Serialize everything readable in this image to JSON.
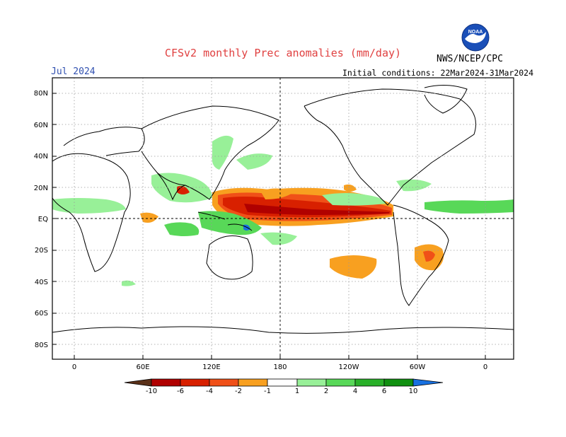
{
  "header": {
    "title": "CFSv2 monthly Prec anomalies (mm/day)",
    "month": "Jul 2024",
    "initial_conditions": "Initial conditions: 22Mar2024-31Mar2024",
    "agency": "NWS/NCEP/CPC",
    "logo_text": "NOAA"
  },
  "axes": {
    "lat_labels": [
      "80N",
      "60N",
      "40N",
      "20N",
      "EQ",
      "20S",
      "40S",
      "60S",
      "80S"
    ],
    "lon_labels": [
      "0",
      "60E",
      "120E",
      "180",
      "120W",
      "60W",
      "0"
    ]
  },
  "colorbar": {
    "labels": [
      "-10",
      "-6",
      "-4",
      "-2",
      "-1",
      "1",
      "2",
      "4",
      "6",
      "10"
    ],
    "colors": [
      "#5a3018",
      "#b00000",
      "#d82000",
      "#f05018",
      "#f8a020",
      "#ffffff",
      "#98f098",
      "#58d858",
      "#28b028",
      "#109010",
      "#1870e0"
    ]
  },
  "palette": {
    "wet1": "#98f098",
    "wet2": "#58d858",
    "wet3": "#28b028",
    "dry1": "#f8a020",
    "dry2": "#f05018",
    "dry3": "#d82000",
    "dry4": "#b00000",
    "title_color": "#e04040",
    "month_color": "#3050b0"
  }
}
